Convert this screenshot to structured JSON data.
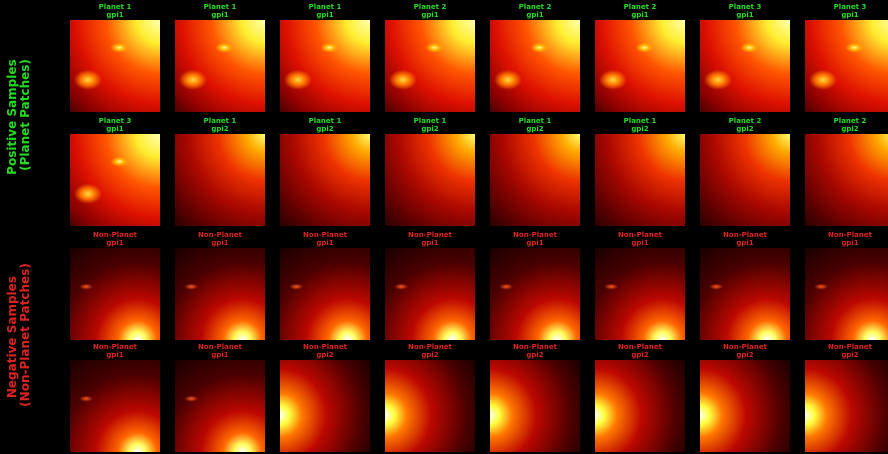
{
  "side_labels": {
    "positive": [
      "Positive Samples",
      "(Planet Patches)"
    ],
    "negative": [
      "Negative Samples",
      "(Non-Planet Patches)"
    ]
  },
  "rows": [
    [
      {
        "title": "Planet 1",
        "subtitle": "gpi1"
      },
      {
        "title": "Planet 1",
        "subtitle": "gpi1"
      },
      {
        "title": "Planet 1",
        "subtitle": "gpi1"
      },
      {
        "title": "Planet 2",
        "subtitle": "gpi1"
      },
      {
        "title": "Planet 2",
        "subtitle": "gpi1"
      },
      {
        "title": "Planet 2",
        "subtitle": "gpi1"
      },
      {
        "title": "Planet 3",
        "subtitle": "gpi1"
      },
      {
        "title": "Planet 3",
        "subtitle": "gpi1"
      }
    ],
    [
      {
        "title": "Planet 3",
        "subtitle": "gpi1"
      },
      {
        "title": "Planet 1",
        "subtitle": "gpi2"
      },
      {
        "title": "Planet 1",
        "subtitle": "gpi2"
      },
      {
        "title": "Planet 1",
        "subtitle": "gpi2"
      },
      {
        "title": "Planet 1",
        "subtitle": "gpi2"
      },
      {
        "title": "Planet 1",
        "subtitle": "gpi2"
      },
      {
        "title": "Planet 2",
        "subtitle": "gpi2"
      },
      {
        "title": "Planet 2",
        "subtitle": "gpi2"
      }
    ],
    [
      {
        "title": "Non-Planet",
        "subtitle": "gpi1"
      },
      {
        "title": "Non-Planet",
        "subtitle": "gpi1"
      },
      {
        "title": "Non-Planet",
        "subtitle": "gpi1"
      },
      {
        "title": "Non-Planet",
        "subtitle": "gpi1"
      },
      {
        "title": "Non-Planet",
        "subtitle": "gpi1"
      },
      {
        "title": "Non-Planet",
        "subtitle": "gpi1"
      },
      {
        "title": "Non-Planet",
        "subtitle": "gpi1"
      },
      {
        "title": "Non-Planet",
        "subtitle": "gpi1"
      }
    ],
    [
      {
        "title": "Non-Planet",
        "subtitle": "gpi1"
      },
      {
        "title": "Non-Planet",
        "subtitle": "gpi1"
      },
      {
        "title": "Non-Planet",
        "subtitle": "gpi2"
      },
      {
        "title": "Non-Planet",
        "subtitle": "gpi2"
      },
      {
        "title": "Non-Planet",
        "subtitle": "gpi2"
      },
      {
        "title": "Non-Planet",
        "subtitle": "gpi2"
      },
      {
        "title": "Non-Planet",
        "subtitle": "gpi2"
      },
      {
        "title": "Non-Planet",
        "subtitle": "gpi2"
      }
    ]
  ]
}
